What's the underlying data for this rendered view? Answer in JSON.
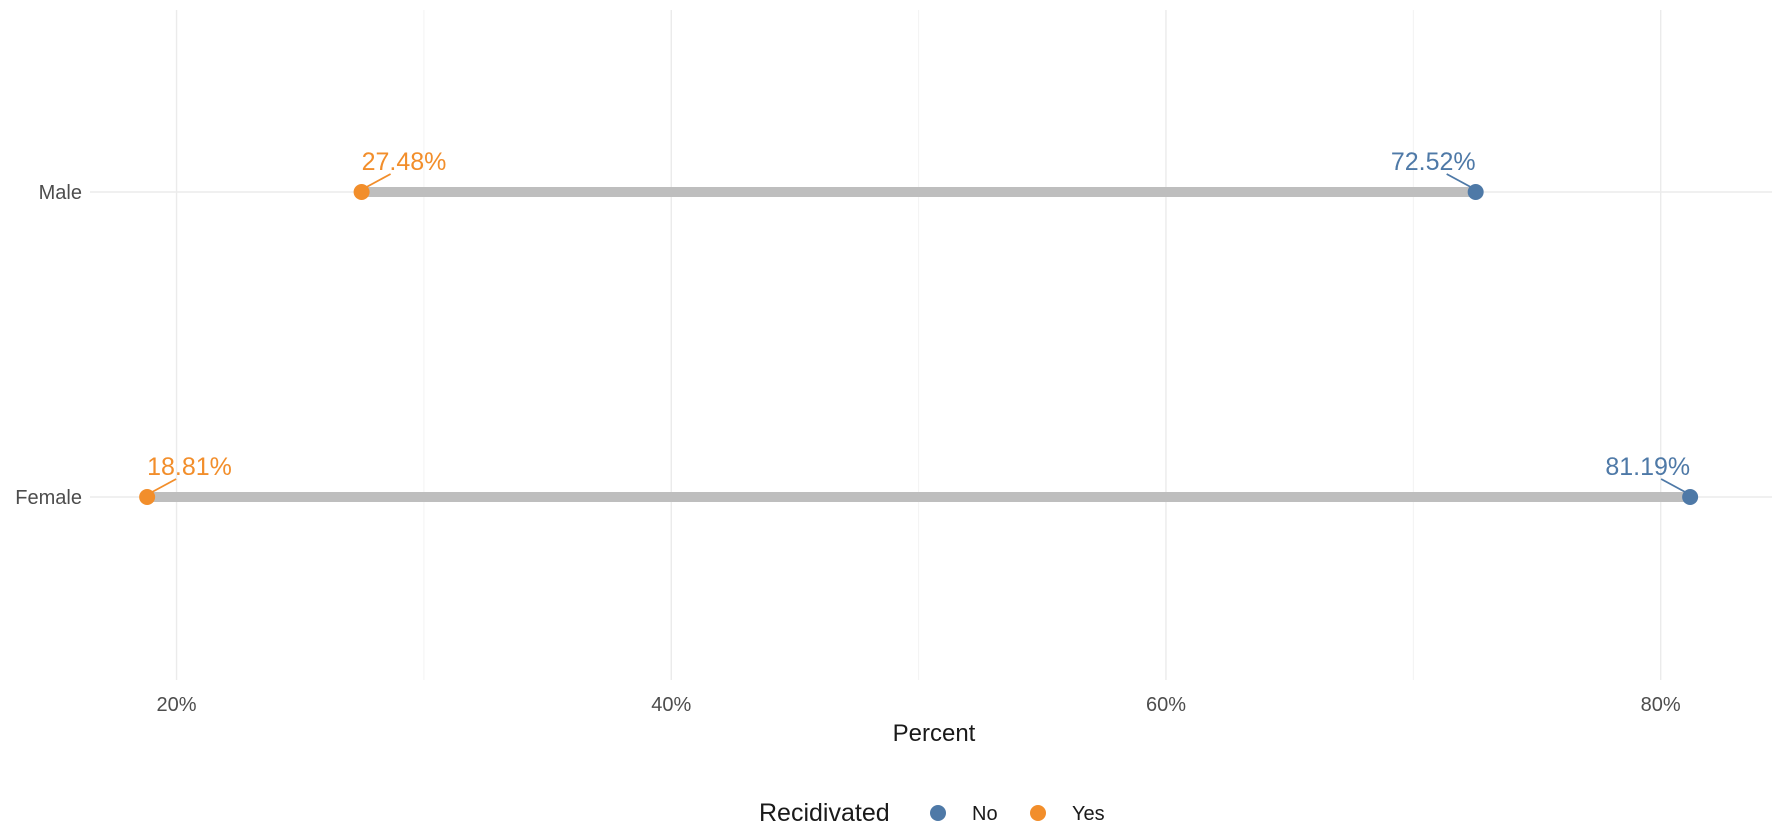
{
  "chart_data": {
    "type": "dumbbell",
    "categories": [
      "Male",
      "Female"
    ],
    "series": [
      {
        "name": "No",
        "color": "#4e79a7",
        "values": [
          72.52,
          81.19
        ],
        "labels": [
          "72.52%",
          "81.19%"
        ]
      },
      {
        "name": "Yes",
        "color": "#f28e2b",
        "values": [
          27.48,
          18.81
        ],
        "labels": [
          "27.48%",
          "18.81%"
        ]
      }
    ],
    "segment_color": "#bebebe",
    "xlabel": "Percent",
    "ylabel": "",
    "xlim": [
      16.5,
      84.5
    ],
    "x_ticks": [
      20,
      40,
      60,
      80
    ],
    "x_tick_labels": [
      "20%",
      "40%",
      "60%",
      "80%"
    ],
    "x_minor_ticks": [
      30,
      50,
      70
    ],
    "grid": true,
    "legend": {
      "title": "Recidivated",
      "position": "bottom",
      "entries": [
        "No",
        "Yes"
      ]
    }
  }
}
